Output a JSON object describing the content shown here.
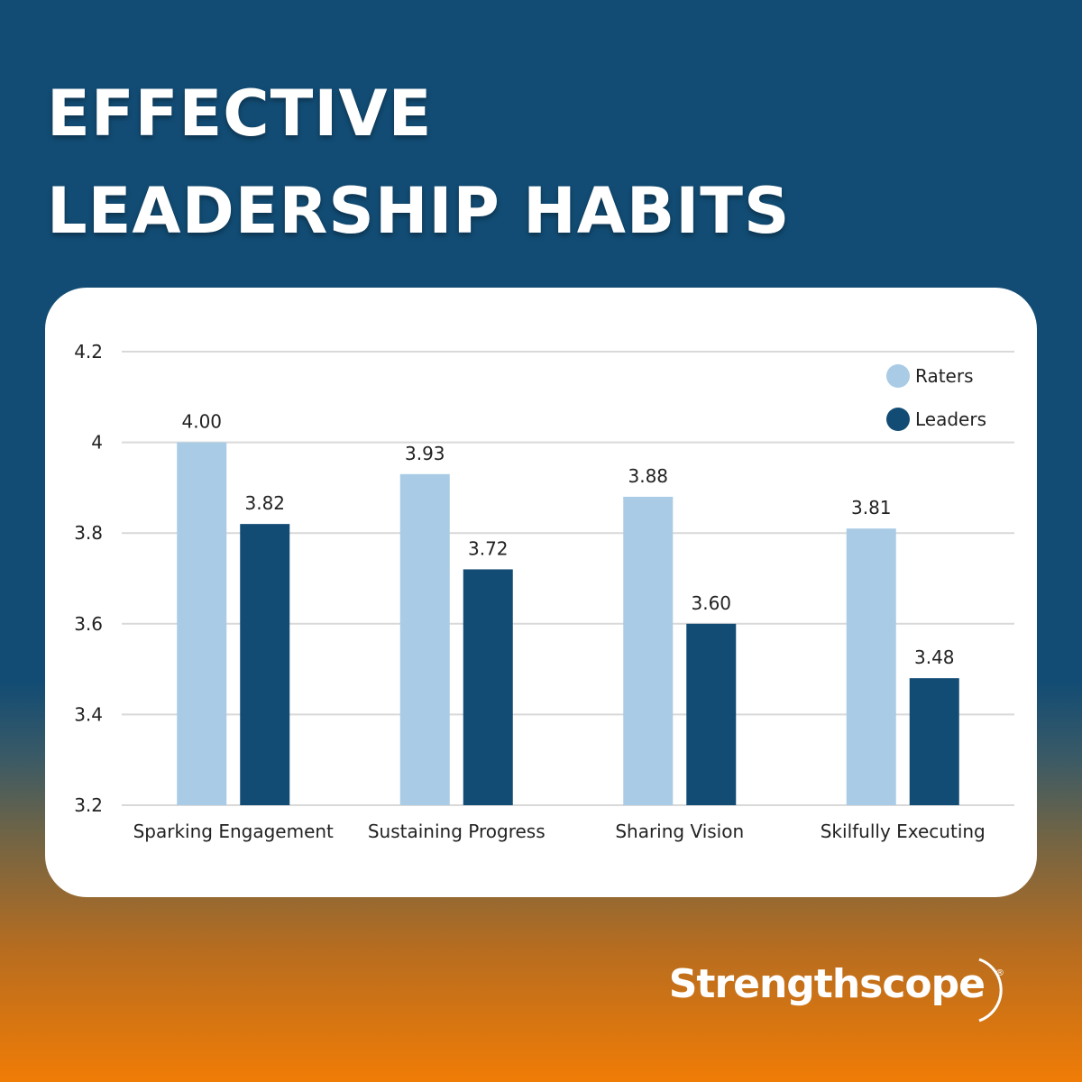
{
  "header": {
    "title_line1": "EFFECTIVE",
    "title_line2": "LEADERSHIP HABITS"
  },
  "chart_data": {
    "type": "bar",
    "categories": [
      "Sparking Engagement",
      "Sustaining Progress",
      "Sharing Vision",
      "Skilfully Executing"
    ],
    "series": [
      {
        "name": "Raters",
        "values": [
          4.0,
          3.93,
          3.88,
          3.81
        ],
        "color": "#a9cbe5"
      },
      {
        "name": "Leaders",
        "values": [
          3.82,
          3.72,
          3.6,
          3.48
        ],
        "color": "#124c74"
      }
    ],
    "value_labels": [
      [
        "4.00",
        "3.93",
        "3.88",
        "3.81"
      ],
      [
        "3.82",
        "3.72",
        "3.60",
        "3.48"
      ]
    ],
    "ylim": [
      3.2,
      4.2
    ],
    "yticks": [
      "3.2",
      "3.4",
      "3.6",
      "3.8",
      "4",
      "4.2"
    ],
    "grid": true,
    "legend_position": "top-right"
  },
  "brand": {
    "name": "Strengthscope",
    "registered": "®"
  }
}
